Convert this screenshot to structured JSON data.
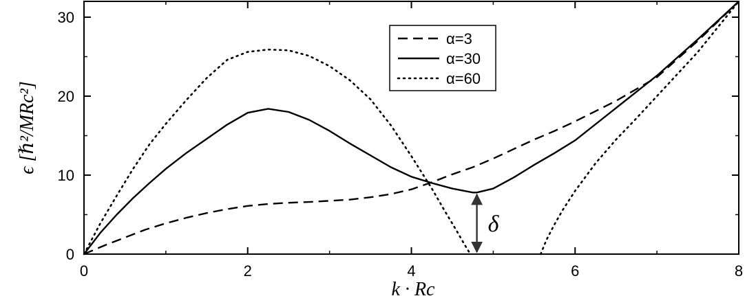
{
  "chart_data": {
    "type": "line",
    "title": "",
    "xlabel": "k · Rc",
    "ylabel": "ϵ [ℏ²/MRc²]",
    "xlim": [
      0,
      8
    ],
    "ylim": [
      0,
      32
    ],
    "x_ticks": [
      "0",
      "2",
      "4",
      "6",
      "8"
    ],
    "y_ticks": [
      "0",
      "10",
      "20",
      "30"
    ],
    "grid": false,
    "legend_position": "top-center",
    "colors": {
      "line": "#000000",
      "annotation": "#333333"
    },
    "series": [
      {
        "name": "α=3",
        "style": "dashed",
        "x": [
          0,
          0.25,
          0.5,
          0.75,
          1,
          1.25,
          1.5,
          1.75,
          2,
          2.25,
          2.5,
          2.75,
          3,
          3.25,
          3.5,
          3.75,
          4,
          4.25,
          4.5,
          4.75,
          5,
          5.25,
          5.5,
          5.75,
          6,
          6.5,
          7,
          7.5,
          8
        ],
        "y": [
          0,
          1.1,
          2.1,
          3.1,
          3.9,
          4.6,
          5.2,
          5.7,
          6.1,
          6.35,
          6.5,
          6.6,
          6.75,
          6.9,
          7.2,
          7.6,
          8.2,
          9.1,
          10.1,
          11.0,
          12.1,
          13.3,
          14.5,
          15.6,
          16.8,
          19.4,
          22.4,
          27.0,
          32.0
        ]
      },
      {
        "name": "α=30",
        "style": "solid",
        "x": [
          0,
          0.2,
          0.4,
          0.6,
          0.8,
          1,
          1.25,
          1.5,
          1.75,
          2,
          2.25,
          2.5,
          2.75,
          3,
          3.25,
          3.5,
          3.75,
          4,
          4.25,
          4.5,
          4.75,
          4.8,
          5,
          5.25,
          5.5,
          5.75,
          6,
          6.5,
          7,
          7.5,
          8
        ],
        "y": [
          0,
          2.7,
          5.0,
          7.1,
          9.0,
          10.8,
          12.8,
          14.6,
          16.4,
          17.9,
          18.4,
          18.0,
          17.0,
          15.6,
          14.0,
          12.5,
          11.0,
          9.8,
          9.0,
          8.3,
          7.8,
          7.8,
          8.3,
          9.7,
          11.3,
          12.8,
          14.4,
          18.5,
          22.6,
          27.2,
          32.0
        ]
      },
      {
        "name": "α=60",
        "style": "dotted",
        "segments": [
          {
            "x": [
              0,
              0.2,
              0.4,
              0.6,
              0.8,
              1,
              1.25,
              1.5,
              1.75,
              2,
              2.25,
              2.5,
              2.75,
              3,
              3.25,
              3.5,
              3.75,
              4,
              4.25,
              4.4,
              4.55,
              4.65,
              4.72
            ],
            "y": [
              0,
              3.9,
              7.4,
              10.8,
              13.9,
              16.5,
              19.5,
              22.3,
              24.6,
              25.6,
              25.9,
              25.8,
              25.1,
              23.8,
              22.0,
              19.6,
              16.3,
              12.4,
              8.3,
              5.6,
              3.0,
              1.2,
              0
            ]
          },
          {
            "x": [
              5.58,
              5.65,
              5.75,
              5.85,
              6,
              6.25,
              6.5,
              6.75,
              7,
              7.5,
              8
            ],
            "y": [
              0,
              1.8,
              3.8,
              5.6,
              8.0,
              11.5,
              14.5,
              17.2,
              20.0,
              25.6,
              32.0
            ]
          }
        ]
      }
    ],
    "annotations": [
      {
        "label": "δ",
        "type": "double-arrow",
        "x": 4.8,
        "y_from": 0,
        "y_to": 7.8
      }
    ]
  }
}
